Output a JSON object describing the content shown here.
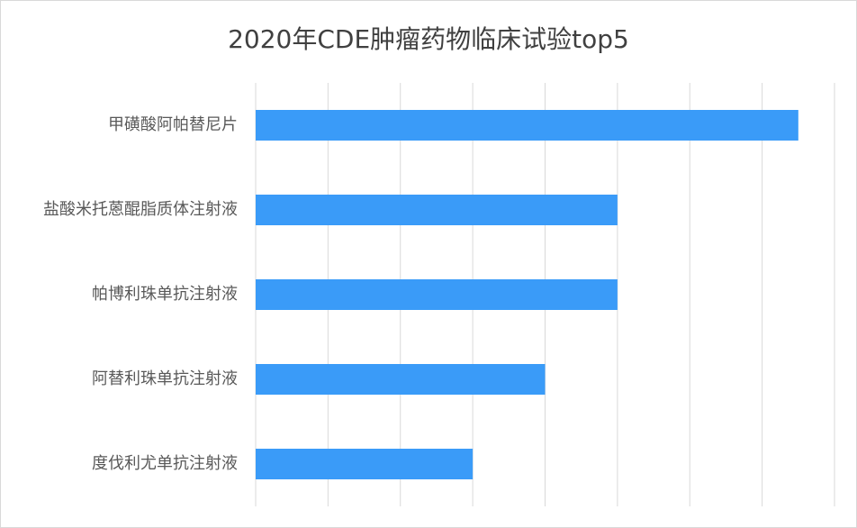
{
  "chart_data": {
    "type": "bar",
    "orientation": "horizontal",
    "title": "2020年CDE肿瘤药物临床试验top5",
    "categories": [
      "甲磺酸阿帕替尼片",
      "盐酸米托蒽醌脂质体注射液",
      "帕博利珠单抗注射液",
      "阿替利珠单抗注射液",
      "度伐利尤单抗注射液"
    ],
    "values": [
      7.5,
      5,
      5,
      4,
      3
    ],
    "color": "#3a9bf8",
    "xlim": [
      0,
      8
    ],
    "xticks": [
      0,
      1,
      2,
      3,
      4,
      5,
      6,
      7,
      8
    ],
    "grid": true
  }
}
